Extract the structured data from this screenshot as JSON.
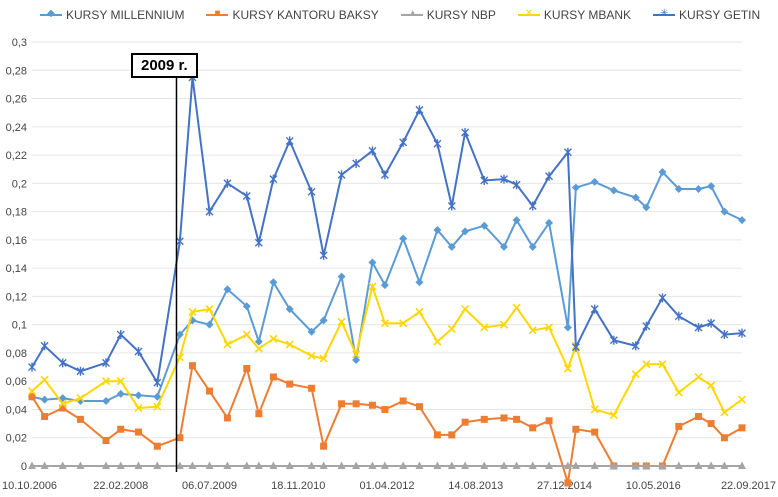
{
  "chart_data": {
    "type": "line",
    "annotation": "2009 r.",
    "annotation_x": "2009-01-01",
    "ylim": [
      0,
      0.3
    ],
    "y_ticks": [
      "0",
      "0,02",
      "0,04",
      "0,06",
      "0,08",
      "0,1",
      "0,12",
      "0,14",
      "0,16",
      "0,18",
      "0,2",
      "0,22",
      "0,24",
      "0,26",
      "0,28",
      "0,3"
    ],
    "x_range": [
      "2006-10-10",
      "2017-09-22"
    ],
    "x_ticks": [
      {
        "date": "2006-10-10",
        "label": "10.10.2006"
      },
      {
        "date": "2008-02-22",
        "label": "22.02.2008"
      },
      {
        "date": "2009-07-06",
        "label": "06.07.2009"
      },
      {
        "date": "2010-11-18",
        "label": "18.11.2010"
      },
      {
        "date": "2012-04-01",
        "label": "01.04.2012"
      },
      {
        "date": "2013-08-14",
        "label": "14.08.2013"
      },
      {
        "date": "2014-12-27",
        "label": "27.12.2014"
      },
      {
        "date": "2016-05-10",
        "label": "10.05.2016"
      },
      {
        "date": "2017-09-22",
        "label": "22.09.2017"
      }
    ],
    "series": [
      {
        "name": "KURSY MILLENNIUM",
        "color": "#5b9bd5",
        "marker": "diamond",
        "points": [
          [
            "2006-10-10",
            0.049
          ],
          [
            "2006-12-20",
            0.047
          ],
          [
            "2007-04-01",
            0.048
          ],
          [
            "2007-07-10",
            0.046
          ],
          [
            "2007-12-01",
            0.046
          ],
          [
            "2008-02-22",
            0.051
          ],
          [
            "2008-06-01",
            0.05
          ],
          [
            "2008-09-15",
            0.049
          ],
          [
            "2009-01-20",
            0.093
          ],
          [
            "2009-04-01",
            0.103
          ],
          [
            "2009-07-06",
            0.1
          ],
          [
            "2009-10-15",
            0.125
          ],
          [
            "2010-02-01",
            0.113
          ],
          [
            "2010-04-10",
            0.088
          ],
          [
            "2010-07-01",
            0.13
          ],
          [
            "2010-10-01",
            0.111
          ],
          [
            "2011-02-01",
            0.095
          ],
          [
            "2011-04-10",
            0.103
          ],
          [
            "2011-07-20",
            0.134
          ],
          [
            "2011-10-10",
            0.075
          ],
          [
            "2012-01-10",
            0.144
          ],
          [
            "2012-03-20",
            0.128
          ],
          [
            "2012-07-01",
            0.161
          ],
          [
            "2012-10-01",
            0.13
          ],
          [
            "2013-01-10",
            0.167
          ],
          [
            "2013-04-01",
            0.155
          ],
          [
            "2013-06-15",
            0.166
          ],
          [
            "2013-10-01",
            0.17
          ],
          [
            "2014-01-20",
            0.155
          ],
          [
            "2014-04-01",
            0.174
          ],
          [
            "2014-07-01",
            0.155
          ],
          [
            "2014-10-01",
            0.172
          ],
          [
            "2015-01-15",
            0.098
          ],
          [
            "2015-03-01",
            0.197
          ],
          [
            "2015-06-15",
            0.201
          ],
          [
            "2015-10-01",
            0.195
          ],
          [
            "2016-02-01",
            0.19
          ],
          [
            "2016-04-01",
            0.183
          ],
          [
            "2016-07-01",
            0.208
          ],
          [
            "2016-10-01",
            0.196
          ],
          [
            "2017-01-20",
            0.196
          ],
          [
            "2017-04-01",
            0.198
          ],
          [
            "2017-06-15",
            0.18
          ],
          [
            "2017-09-22",
            0.174
          ]
        ]
      },
      {
        "name": "KURSY KANTORU BAKSY",
        "color": "#ed7d31",
        "marker": "square",
        "points": [
          [
            "2006-10-10",
            0.049
          ],
          [
            "2006-12-20",
            0.035
          ],
          [
            "2007-04-01",
            0.041
          ],
          [
            "2007-07-10",
            0.033
          ],
          [
            "2007-12-01",
            0.018
          ],
          [
            "2008-02-22",
            0.026
          ],
          [
            "2008-06-01",
            0.024
          ],
          [
            "2008-09-15",
            0.014
          ],
          [
            "2009-01-20",
            0.02
          ],
          [
            "2009-04-01",
            0.071
          ],
          [
            "2009-07-06",
            0.053
          ],
          [
            "2009-10-15",
            0.034
          ],
          [
            "2010-02-01",
            0.069
          ],
          [
            "2010-04-10",
            0.037
          ],
          [
            "2010-07-01",
            0.063
          ],
          [
            "2010-10-01",
            0.058
          ],
          [
            "2011-02-01",
            0.055
          ],
          [
            "2011-04-10",
            0.014
          ],
          [
            "2011-07-20",
            0.044
          ],
          [
            "2011-10-10",
            0.044
          ],
          [
            "2012-01-10",
            0.043
          ],
          [
            "2012-03-20",
            0.04
          ],
          [
            "2012-07-01",
            0.046
          ],
          [
            "2012-10-01",
            0.042
          ],
          [
            "2013-01-10",
            0.022
          ],
          [
            "2013-04-01",
            0.022
          ],
          [
            "2013-06-15",
            0.031
          ],
          [
            "2013-10-01",
            0.033
          ],
          [
            "2014-01-20",
            0.034
          ],
          [
            "2014-04-01",
            0.033
          ],
          [
            "2014-07-01",
            0.027
          ],
          [
            "2014-10-01",
            0.032
          ],
          [
            "2015-01-15",
            -0.012
          ],
          [
            "2015-03-01",
            0.026
          ],
          [
            "2015-06-15",
            0.024
          ],
          [
            "2015-10-01",
            0.0
          ],
          [
            "2016-02-01",
            0.0
          ],
          [
            "2016-04-01",
            0.0
          ],
          [
            "2016-07-01",
            0.0
          ],
          [
            "2016-10-01",
            0.028
          ],
          [
            "2017-01-20",
            0.035
          ],
          [
            "2017-04-01",
            0.03
          ],
          [
            "2017-06-15",
            0.02
          ],
          [
            "2017-09-22",
            0.027
          ]
        ]
      },
      {
        "name": "KURSY NBP",
        "color": "#a5a5a5",
        "marker": "triangle",
        "points": [
          [
            "2006-10-10",
            0.0
          ],
          [
            "2006-12-20",
            0.0
          ],
          [
            "2007-04-01",
            0.0
          ],
          [
            "2007-07-10",
            0.0
          ],
          [
            "2007-12-01",
            0.0
          ],
          [
            "2008-02-22",
            0.0
          ],
          [
            "2008-06-01",
            0.0
          ],
          [
            "2008-09-15",
            0.0
          ],
          [
            "2009-01-20",
            0.0
          ],
          [
            "2009-04-01",
            0.0
          ],
          [
            "2009-07-06",
            0.0
          ],
          [
            "2009-10-15",
            0.0
          ],
          [
            "2010-02-01",
            0.0
          ],
          [
            "2010-04-10",
            0.0
          ],
          [
            "2010-07-01",
            0.0
          ],
          [
            "2010-10-01",
            0.0
          ],
          [
            "2011-02-01",
            0.0
          ],
          [
            "2011-04-10",
            0.0
          ],
          [
            "2011-07-20",
            0.0
          ],
          [
            "2011-10-10",
            0.0
          ],
          [
            "2012-01-10",
            0.0
          ],
          [
            "2012-03-20",
            0.0
          ],
          [
            "2012-07-01",
            0.0
          ],
          [
            "2012-10-01",
            0.0
          ],
          [
            "2013-01-10",
            0.0
          ],
          [
            "2013-04-01",
            0.0
          ],
          [
            "2013-06-15",
            0.0
          ],
          [
            "2013-10-01",
            0.0
          ],
          [
            "2014-01-20",
            0.0
          ],
          [
            "2014-04-01",
            0.0
          ],
          [
            "2014-07-01",
            0.0
          ],
          [
            "2014-10-01",
            0.0
          ],
          [
            "2015-01-15",
            0.0
          ],
          [
            "2015-03-01",
            0.0
          ],
          [
            "2015-06-15",
            0.0
          ],
          [
            "2015-10-01",
            0.0
          ],
          [
            "2016-02-01",
            0.0
          ],
          [
            "2016-04-01",
            0.0
          ],
          [
            "2016-07-01",
            0.0
          ],
          [
            "2016-10-01",
            0.0
          ],
          [
            "2017-01-20",
            0.0
          ],
          [
            "2017-04-01",
            0.0
          ],
          [
            "2017-06-15",
            0.0
          ],
          [
            "2017-09-22",
            0.0
          ]
        ]
      },
      {
        "name": "KURSY MBANK",
        "color": "#ffd700",
        "marker": "x",
        "points": [
          [
            "2006-10-10",
            0.053
          ],
          [
            "2006-12-20",
            0.061
          ],
          [
            "2007-04-01",
            0.044
          ],
          [
            "2007-07-10",
            0.048
          ],
          [
            "2007-12-01",
            0.06
          ],
          [
            "2008-02-22",
            0.06
          ],
          [
            "2008-06-01",
            0.041
          ],
          [
            "2008-09-15",
            0.042
          ],
          [
            "2009-01-20",
            0.077
          ],
          [
            "2009-04-01",
            0.109
          ],
          [
            "2009-07-06",
            0.111
          ],
          [
            "2009-10-15",
            0.086
          ],
          [
            "2010-02-01",
            0.093
          ],
          [
            "2010-04-10",
            0.083
          ],
          [
            "2010-07-01",
            0.09
          ],
          [
            "2010-10-01",
            0.086
          ],
          [
            "2011-02-01",
            0.078
          ],
          [
            "2011-04-10",
            0.076
          ],
          [
            "2011-07-20",
            0.102
          ],
          [
            "2011-10-10",
            0.079
          ],
          [
            "2012-01-10",
            0.127
          ],
          [
            "2012-03-20",
            0.101
          ],
          [
            "2012-07-01",
            0.101
          ],
          [
            "2012-10-01",
            0.109
          ],
          [
            "2013-01-10",
            0.088
          ],
          [
            "2013-04-01",
            0.097
          ],
          [
            "2013-06-15",
            0.111
          ],
          [
            "2013-10-01",
            0.098
          ],
          [
            "2014-01-20",
            0.1
          ],
          [
            "2014-04-01",
            0.112
          ],
          [
            "2014-07-01",
            0.096
          ],
          [
            "2014-10-01",
            0.098
          ],
          [
            "2015-01-15",
            0.069
          ],
          [
            "2015-03-01",
            0.085
          ],
          [
            "2015-06-15",
            0.04
          ],
          [
            "2015-10-01",
            0.036
          ],
          [
            "2016-02-01",
            0.065
          ],
          [
            "2016-04-01",
            0.072
          ],
          [
            "2016-07-01",
            0.072
          ],
          [
            "2016-10-01",
            0.052
          ],
          [
            "2017-01-20",
            0.063
          ],
          [
            "2017-04-01",
            0.057
          ],
          [
            "2017-06-15",
            0.038
          ],
          [
            "2017-09-22",
            0.047
          ]
        ]
      },
      {
        "name": "KURSY GETIN",
        "color": "#4472c4",
        "marker": "star",
        "points": [
          [
            "2006-10-10",
            0.07
          ],
          [
            "2006-12-20",
            0.085
          ],
          [
            "2007-04-01",
            0.073
          ],
          [
            "2007-07-10",
            0.067
          ],
          [
            "2007-12-01",
            0.073
          ],
          [
            "2008-02-22",
            0.093
          ],
          [
            "2008-06-01",
            0.081
          ],
          [
            "2008-09-15",
            0.059
          ],
          [
            "2009-01-20",
            0.159
          ],
          [
            "2009-04-01",
            0.275
          ],
          [
            "2009-07-06",
            0.18
          ],
          [
            "2009-10-15",
            0.2
          ],
          [
            "2010-02-01",
            0.191
          ],
          [
            "2010-04-10",
            0.158
          ],
          [
            "2010-07-01",
            0.203
          ],
          [
            "2010-10-01",
            0.23
          ],
          [
            "2011-02-01",
            0.194
          ],
          [
            "2011-04-10",
            0.149
          ],
          [
            "2011-07-20",
            0.206
          ],
          [
            "2011-10-10",
            0.214
          ],
          [
            "2012-01-10",
            0.223
          ],
          [
            "2012-03-20",
            0.206
          ],
          [
            "2012-07-01",
            0.229
          ],
          [
            "2012-10-01",
            0.252
          ],
          [
            "2013-01-10",
            0.228
          ],
          [
            "2013-04-01",
            0.184
          ],
          [
            "2013-06-15",
            0.236
          ],
          [
            "2013-10-01",
            0.202
          ],
          [
            "2014-01-20",
            0.203
          ],
          [
            "2014-04-01",
            0.199
          ],
          [
            "2014-07-01",
            0.184
          ],
          [
            "2014-10-01",
            0.205
          ],
          [
            "2015-01-15",
            0.222
          ],
          [
            "2015-03-01",
            0.084
          ],
          [
            "2015-06-15",
            0.111
          ],
          [
            "2015-10-01",
            0.089
          ],
          [
            "2016-02-01",
            0.085
          ],
          [
            "2016-04-01",
            0.099
          ],
          [
            "2016-07-01",
            0.119
          ],
          [
            "2016-10-01",
            0.106
          ],
          [
            "2017-01-20",
            0.098
          ],
          [
            "2017-04-01",
            0.101
          ],
          [
            "2017-06-15",
            0.093
          ],
          [
            "2017-09-22",
            0.094
          ]
        ]
      }
    ]
  }
}
